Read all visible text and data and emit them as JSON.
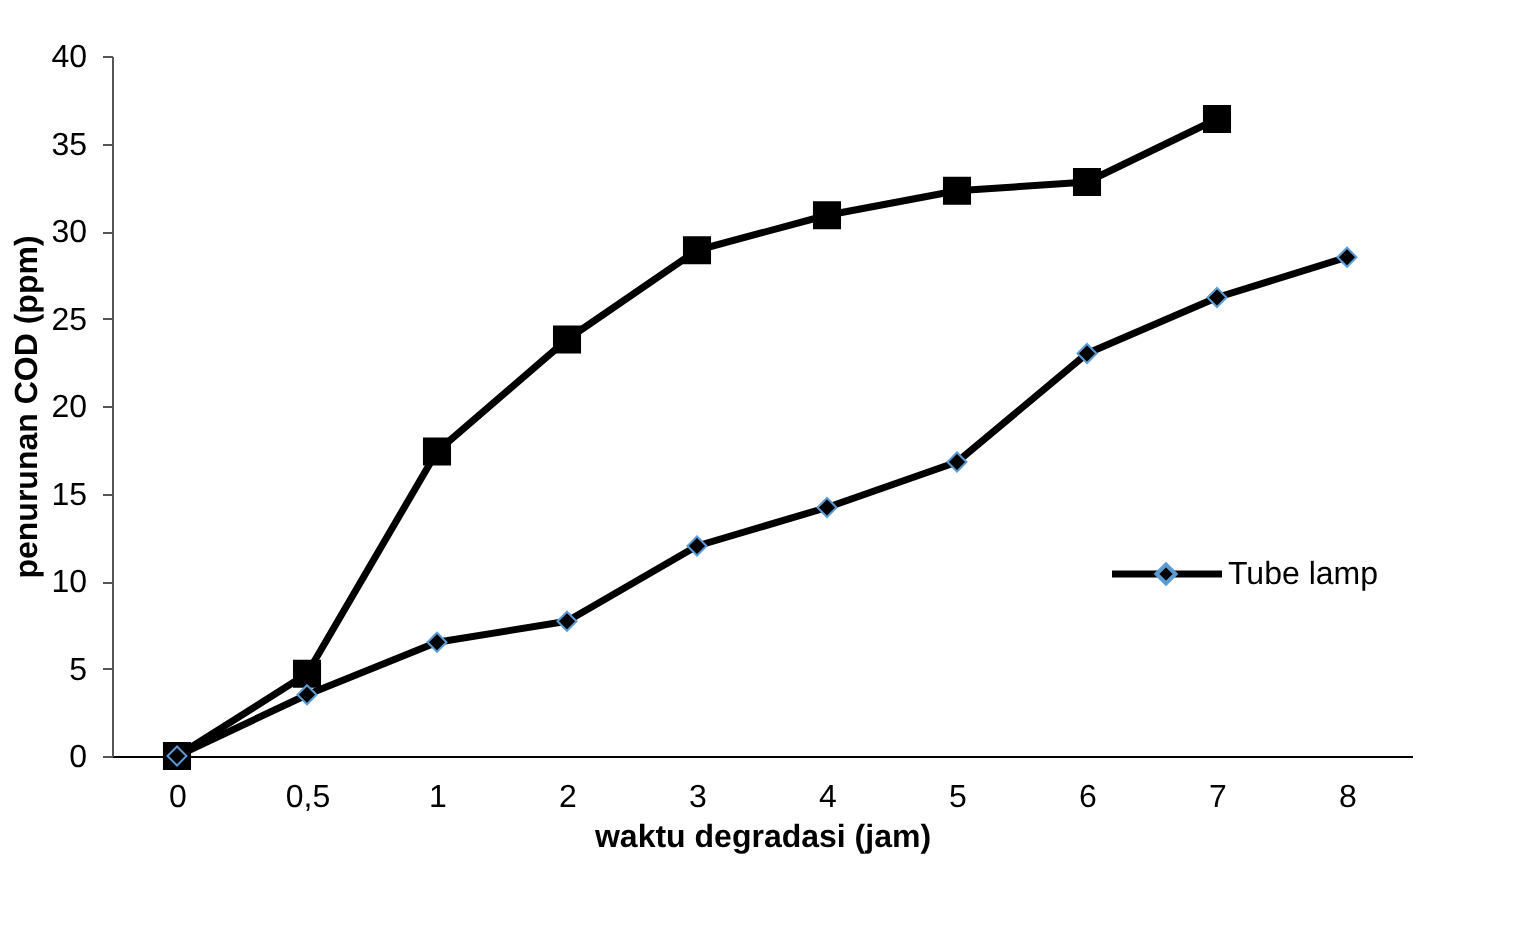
{
  "chart_data": {
    "type": "line",
    "xlabel": "waktu degradasi (jam)",
    "ylabel": "penurunan COD (ppm)",
    "categories": [
      "0",
      "0,5",
      "1",
      "2",
      "3",
      "4",
      "5",
      "6",
      "7",
      "8"
    ],
    "series": [
      {
        "color": "#000000",
        "marker": "square",
        "values": [
          0,
          4.7,
          17.4,
          23.8,
          28.9,
          30.9,
          32.3,
          32.8,
          36.4,
          null
        ]
      },
      {
        "name": "Tube lamp",
        "color": "#000000",
        "marker": "diamond",
        "values": [
          0,
          3.5,
          6.5,
          7.7,
          12,
          14.2,
          16.8,
          23,
          26.2,
          28.5
        ]
      }
    ],
    "ylim": [
      0,
      40
    ],
    "yticks": [
      0,
      5,
      10,
      15,
      20,
      25,
      30,
      35,
      40
    ],
    "grid": false,
    "legend": "right",
    "line_style": "solid"
  }
}
